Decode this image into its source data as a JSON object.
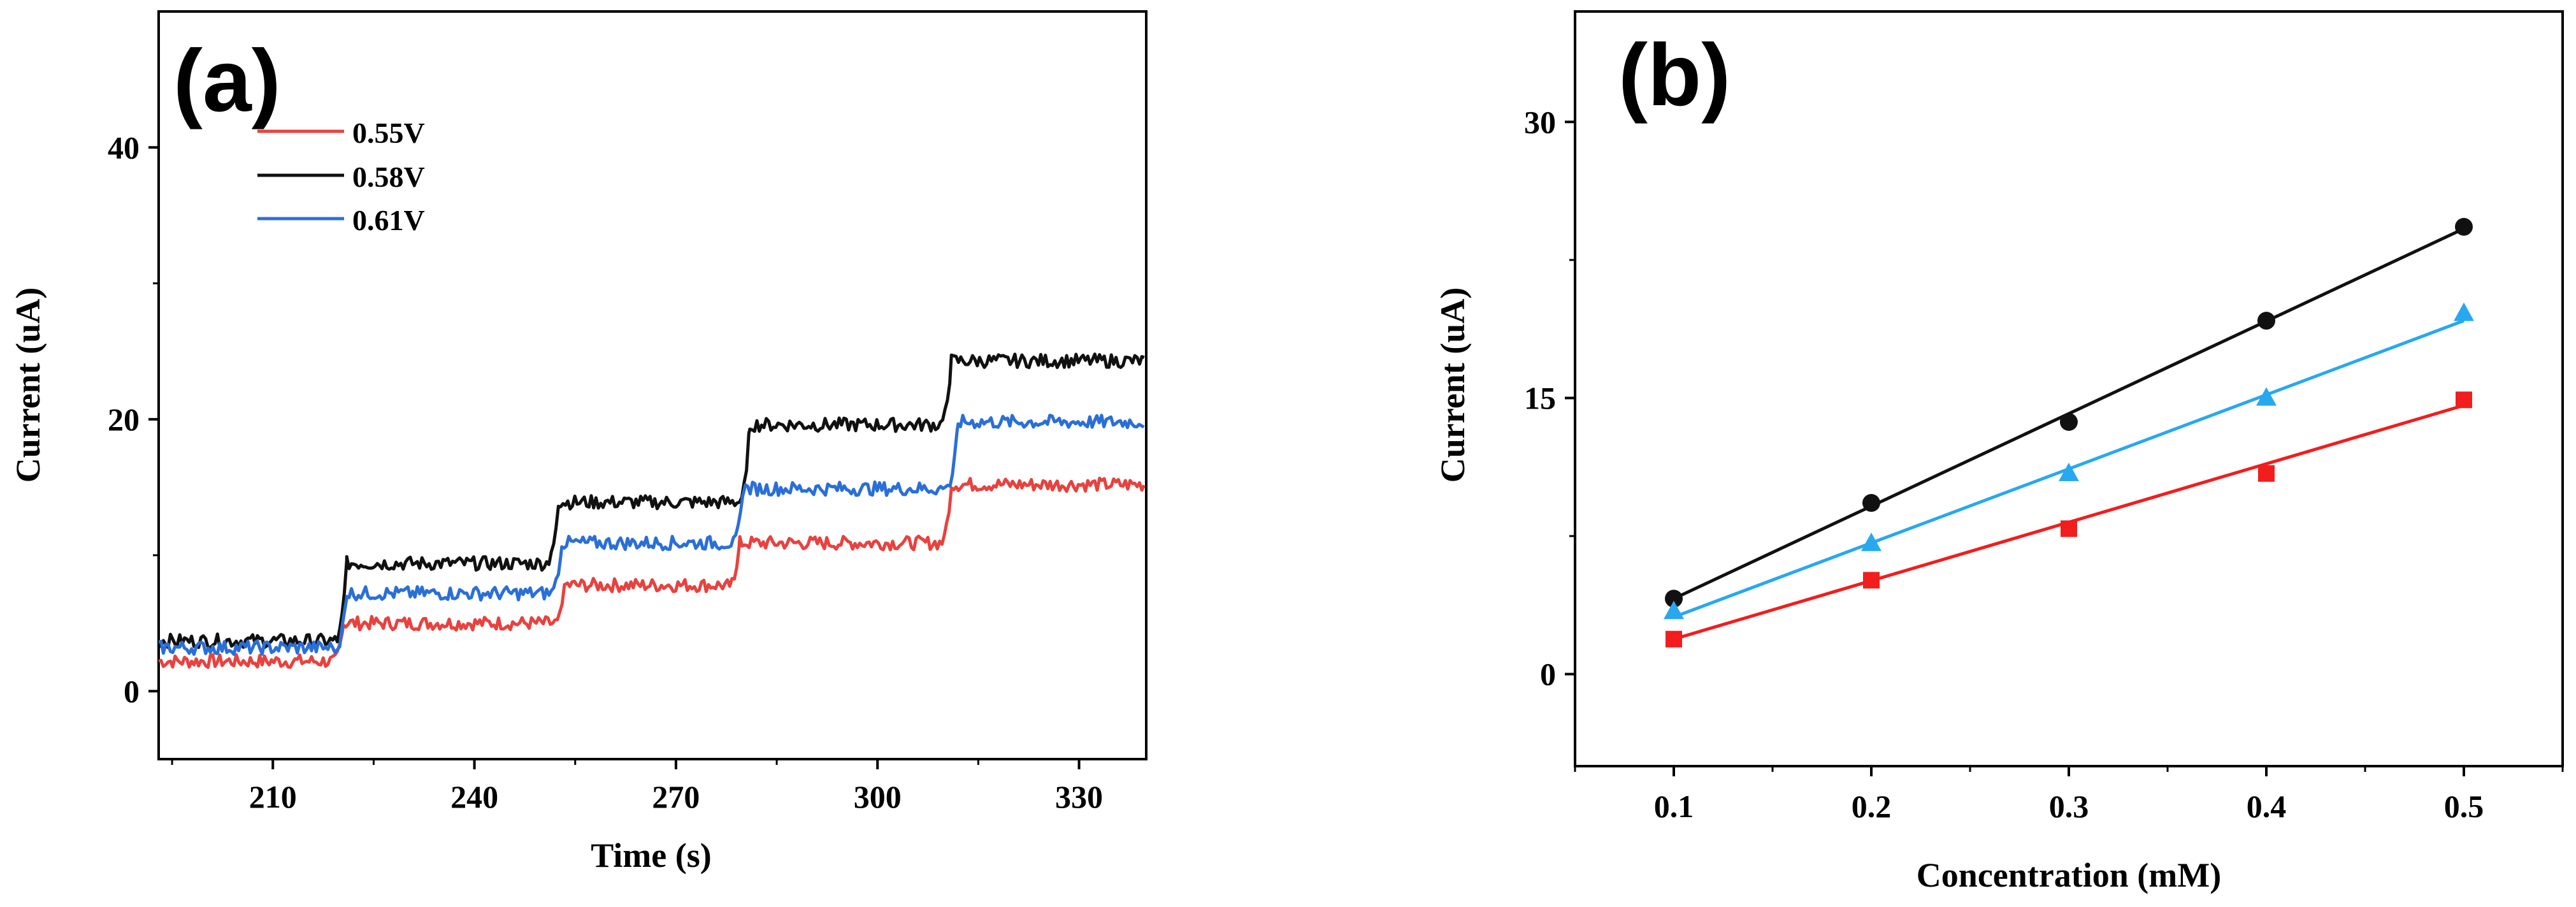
{
  "chart_data": [
    {
      "type": "line",
      "panel_label": "(a)",
      "xlabel": "Time (s)",
      "ylabel": "Current (uA)",
      "xlim": [
        193,
        340
      ],
      "ylim": [
        -5,
        50
      ],
      "xticks": [
        210,
        240,
        270,
        300,
        330
      ],
      "yticks": [
        0,
        20,
        40
      ],
      "legend_position": "top-left",
      "series": [
        {
          "name": "0.55V",
          "color": "#e8423f",
          "steps": [
            [
              193,
              2.2
            ],
            [
              220.5,
              5.0
            ],
            [
              253.5,
              7.8
            ],
            [
              279.5,
              10.9
            ],
            [
              311.0,
              15.2
            ],
            [
              340,
              15.2
            ]
          ]
        },
        {
          "name": "0.58V",
          "color": "#111111",
          "steps": [
            [
              193,
              3.7
            ],
            [
              221.0,
              9.4
            ],
            [
              252.5,
              13.9
            ],
            [
              281.0,
              19.6
            ],
            [
              311.0,
              24.3
            ],
            [
              340,
              24.3
            ]
          ]
        },
        {
          "name": "0.61V",
          "color": "#2a6fd8",
          "steps": [
            [
              193,
              3.2
            ],
            [
              221.0,
              7.2
            ],
            [
              253.0,
              10.9
            ],
            [
              280.0,
              14.9
            ],
            [
              312.0,
              19.8
            ],
            [
              340,
              19.8
            ]
          ]
        }
      ]
    },
    {
      "type": "scatter",
      "panel_label": "(b)",
      "xlabel": "Concentration (mM)",
      "ylabel": "Current (uA)",
      "xlim": [
        0.05,
        0.55
      ],
      "ylim": [
        -5,
        36
      ],
      "xticks": [
        "0.1",
        "0.2",
        "0.3",
        "0.4",
        "0.5"
      ],
      "yticks": [
        "0",
        "15",
        "30"
      ],
      "x": [
        0.1,
        0.2,
        0.3,
        0.4,
        0.5
      ],
      "series": [
        {
          "name": "0.58V",
          "color": "#111111",
          "marker": "circle",
          "values": [
            4.1,
            9.3,
            13.7,
            19.2,
            24.3
          ],
          "fit": [
            [
              0.1,
              4.1
            ],
            [
              0.5,
              24.2
            ]
          ]
        },
        {
          "name": "0.61V",
          "color": "#27a8ef",
          "marker": "triangle",
          "values": [
            3.4,
            7.1,
            10.9,
            15.0,
            19.6
          ],
          "fit": [
            [
              0.1,
              3.1
            ],
            [
              0.5,
              19.2
            ]
          ]
        },
        {
          "name": "0.55V",
          "color": "#f21d1d",
          "marker": "square",
          "values": [
            1.9,
            5.1,
            7.9,
            10.9,
            14.9
          ],
          "fit": [
            [
              0.1,
              1.9
            ],
            [
              0.5,
              14.6
            ]
          ]
        }
      ]
    }
  ]
}
